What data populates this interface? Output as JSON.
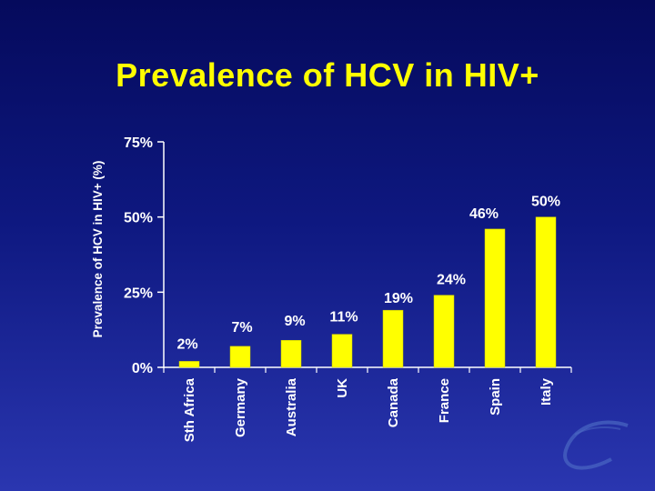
{
  "slide": {
    "title": "Prevalence of HCV in HIV+"
  },
  "chart_data": {
    "type": "bar",
    "title": "Prevalence of HCV in HIV+",
    "xlabel": "",
    "ylabel": "Prevalence of HCV in HIV+ (%)",
    "ylim": [
      0,
      75
    ],
    "yticks": [
      0,
      25,
      50,
      75
    ],
    "ytick_labels": [
      "0%",
      "25%",
      "50%",
      "75%"
    ],
    "categories": [
      "Sth Africa",
      "Germany",
      "Australia",
      "UK",
      "Canada",
      "France",
      "Spain",
      "Italy"
    ],
    "values": [
      2,
      7,
      9,
      11,
      19,
      24,
      46,
      50
    ],
    "data_labels": [
      "2%",
      "7%",
      "9%",
      "11%",
      "19%",
      "24%",
      "46%",
      "50%"
    ],
    "grid": false,
    "legend": "none"
  },
  "colors": {
    "bar": "#ffff00",
    "axis": "#ffffff",
    "title": "#ffff00",
    "text": "#ffffff"
  }
}
